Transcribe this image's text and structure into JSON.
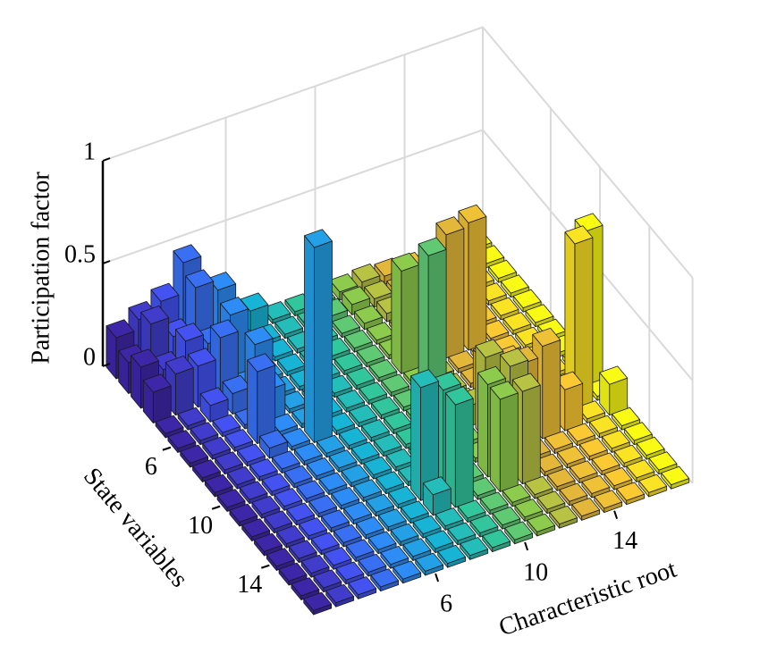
{
  "chart_data": {
    "type": "bar3",
    "x_label": "Characteristic root",
    "y_label": "State variables",
    "z_label": "Participation factor",
    "xticks": [
      6,
      10,
      14
    ],
    "yticks": [
      6,
      10,
      14
    ],
    "zlim": [
      0,
      1
    ],
    "zticks": [
      0,
      0.5,
      1
    ],
    "grid": true,
    "colormap": [
      "#3e26a8",
      "#4352f0",
      "#2d8cf5",
      "#18b4d6",
      "#31c69c",
      "#8ccb4c",
      "#e3b83a",
      "#fbc932",
      "#f9fb15"
    ],
    "z": [
      [
        0.2,
        0.25,
        0.3,
        0.45,
        0.05,
        0.02,
        0.1,
        0.02,
        0.02,
        0.02,
        0.04,
        0.05,
        0.04,
        0.03,
        0.02,
        0.02,
        0.02
      ],
      [
        0.15,
        0.3,
        0.2,
        0.4,
        0.35,
        0.02,
        0.02,
        0.02,
        0.02,
        0.03,
        0.05,
        0.04,
        0.03,
        0.05,
        0.02,
        0.02,
        0.02
      ],
      [
        0.2,
        0.15,
        0.25,
        0.2,
        0.3,
        0.02,
        0.02,
        0.02,
        0.02,
        0.02,
        0.03,
        0.04,
        0.03,
        0.02,
        0.03,
        0.02,
        0.02
      ],
      [
        0.15,
        0.2,
        0.2,
        0.3,
        0.02,
        0.02,
        0.02,
        0.02,
        0.02,
        0.02,
        0.02,
        0.02,
        0.05,
        0.02,
        0.02,
        0.02,
        0.02
      ],
      [
        0.02,
        0.02,
        0.08,
        0.1,
        0.3,
        0.02,
        0.02,
        0.02,
        0.02,
        0.02,
        0.02,
        0.02,
        0.02,
        0.02,
        0.02,
        0.02,
        0.02
      ],
      [
        0.02,
        0.02,
        0.02,
        0.02,
        0.15,
        0.02,
        0.02,
        0.02,
        0.02,
        0.02,
        0.5,
        0.02,
        0.6,
        0.62,
        0.02,
        0.02,
        0.02
      ],
      [
        0.02,
        0.02,
        0.02,
        0.35,
        0.02,
        0.02,
        0.02,
        0.02,
        0.02,
        0.02,
        0.02,
        0.02,
        0.02,
        0.02,
        0.02,
        0.02,
        0.02
      ],
      [
        0.02,
        0.02,
        0.02,
        0.05,
        0.02,
        0.95,
        0.02,
        0.02,
        0.02,
        0.02,
        0.02,
        0.02,
        0.02,
        0.02,
        0.02,
        0.02,
        0.02
      ],
      [
        0.02,
        0.02,
        0.02,
        0.02,
        0.02,
        0.02,
        0.02,
        0.02,
        0.02,
        0.02,
        0.1,
        0.02,
        0.2,
        0.15,
        0.02,
        0.02,
        0.02
      ],
      [
        0.02,
        0.02,
        0.02,
        0.02,
        0.02,
        0.02,
        0.02,
        0.02,
        0.02,
        0.9,
        0.02,
        0.1,
        0.02,
        0.02,
        0.02,
        0.02,
        0.75
      ],
      [
        0.02,
        0.02,
        0.02,
        0.02,
        0.02,
        0.02,
        0.02,
        0.02,
        0.02,
        0.02,
        0.02,
        0.4,
        0.02,
        0.1,
        0.08,
        0.8,
        0.02
      ],
      [
        0.02,
        0.02,
        0.02,
        0.02,
        0.02,
        0.02,
        0.02,
        0.02,
        0.02,
        0.02,
        0.02,
        0.02,
        0.4,
        0.45,
        0.2,
        0.02,
        0.15
      ],
      [
        0.02,
        0.02,
        0.02,
        0.02,
        0.02,
        0.02,
        0.02,
        0.55,
        0.5,
        0.02,
        0.45,
        0.5,
        0.02,
        0.02,
        0.02,
        0.02,
        0.02
      ],
      [
        0.02,
        0.02,
        0.02,
        0.02,
        0.02,
        0.02,
        0.02,
        0.1,
        0.5,
        0.02,
        0.45,
        0.45,
        0.02,
        0.02,
        0.02,
        0.02,
        0.02
      ],
      [
        0.02,
        0.02,
        0.02,
        0.02,
        0.02,
        0.02,
        0.02,
        0.02,
        0.02,
        0.02,
        0.02,
        0.02,
        0.02,
        0.02,
        0.02,
        0.02,
        0.02
      ],
      [
        0.02,
        0.02,
        0.02,
        0.02,
        0.02,
        0.02,
        0.02,
        0.02,
        0.02,
        0.02,
        0.02,
        0.02,
        0.02,
        0.02,
        0.02,
        0.02,
        0.02
      ],
      [
        0.02,
        0.02,
        0.02,
        0.02,
        0.02,
        0.02,
        0.02,
        0.02,
        0.02,
        0.02,
        0.02,
        0.02,
        0.02,
        0.02,
        0.02,
        0.02,
        0.02
      ]
    ]
  }
}
